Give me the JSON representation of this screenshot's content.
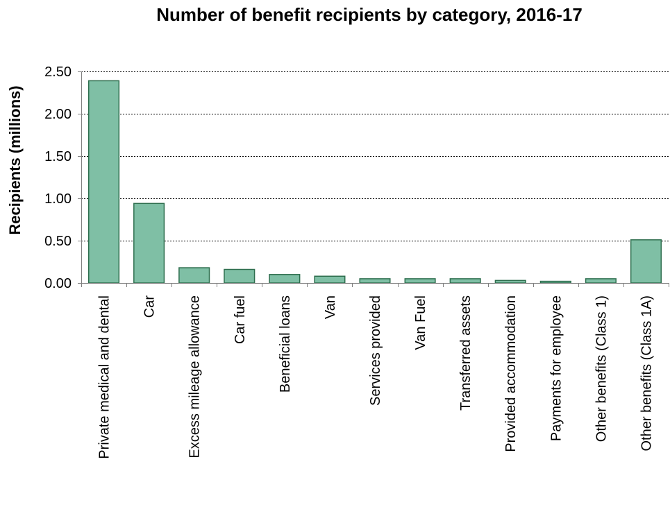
{
  "chart_data": {
    "type": "bar",
    "title": "Number of benefit recipients by category, 2016-17",
    "xlabel": "",
    "ylabel": "Recipients (millions)",
    "ylim": [
      0,
      2.5
    ],
    "yticks": [
      "0.00",
      "0.50",
      "1.00",
      "1.50",
      "2.00",
      "2.50"
    ],
    "ytick_values": [
      0,
      0.5,
      1.0,
      1.5,
      2.0,
      2.5
    ],
    "grid": true,
    "legend": "none",
    "categories": [
      "Private medical and dental",
      "Car",
      "Excess mileage allowance",
      "Car fuel",
      "Beneficial loans",
      "Van",
      "Services provided",
      "Van Fuel",
      "Transferred assets",
      "Provided accommodation",
      "Payments for employee",
      "Other benefits (Class 1)",
      "Other benefits (Class 1A)"
    ],
    "values": [
      2.39,
      0.94,
      0.18,
      0.16,
      0.1,
      0.08,
      0.05,
      0.05,
      0.05,
      0.03,
      0.02,
      0.05,
      0.51
    ],
    "colors": {
      "bar_fill": "#7fbfa5",
      "bar_stroke": "#2e6e4e",
      "grid": "#000000",
      "axis": "#808080"
    }
  }
}
